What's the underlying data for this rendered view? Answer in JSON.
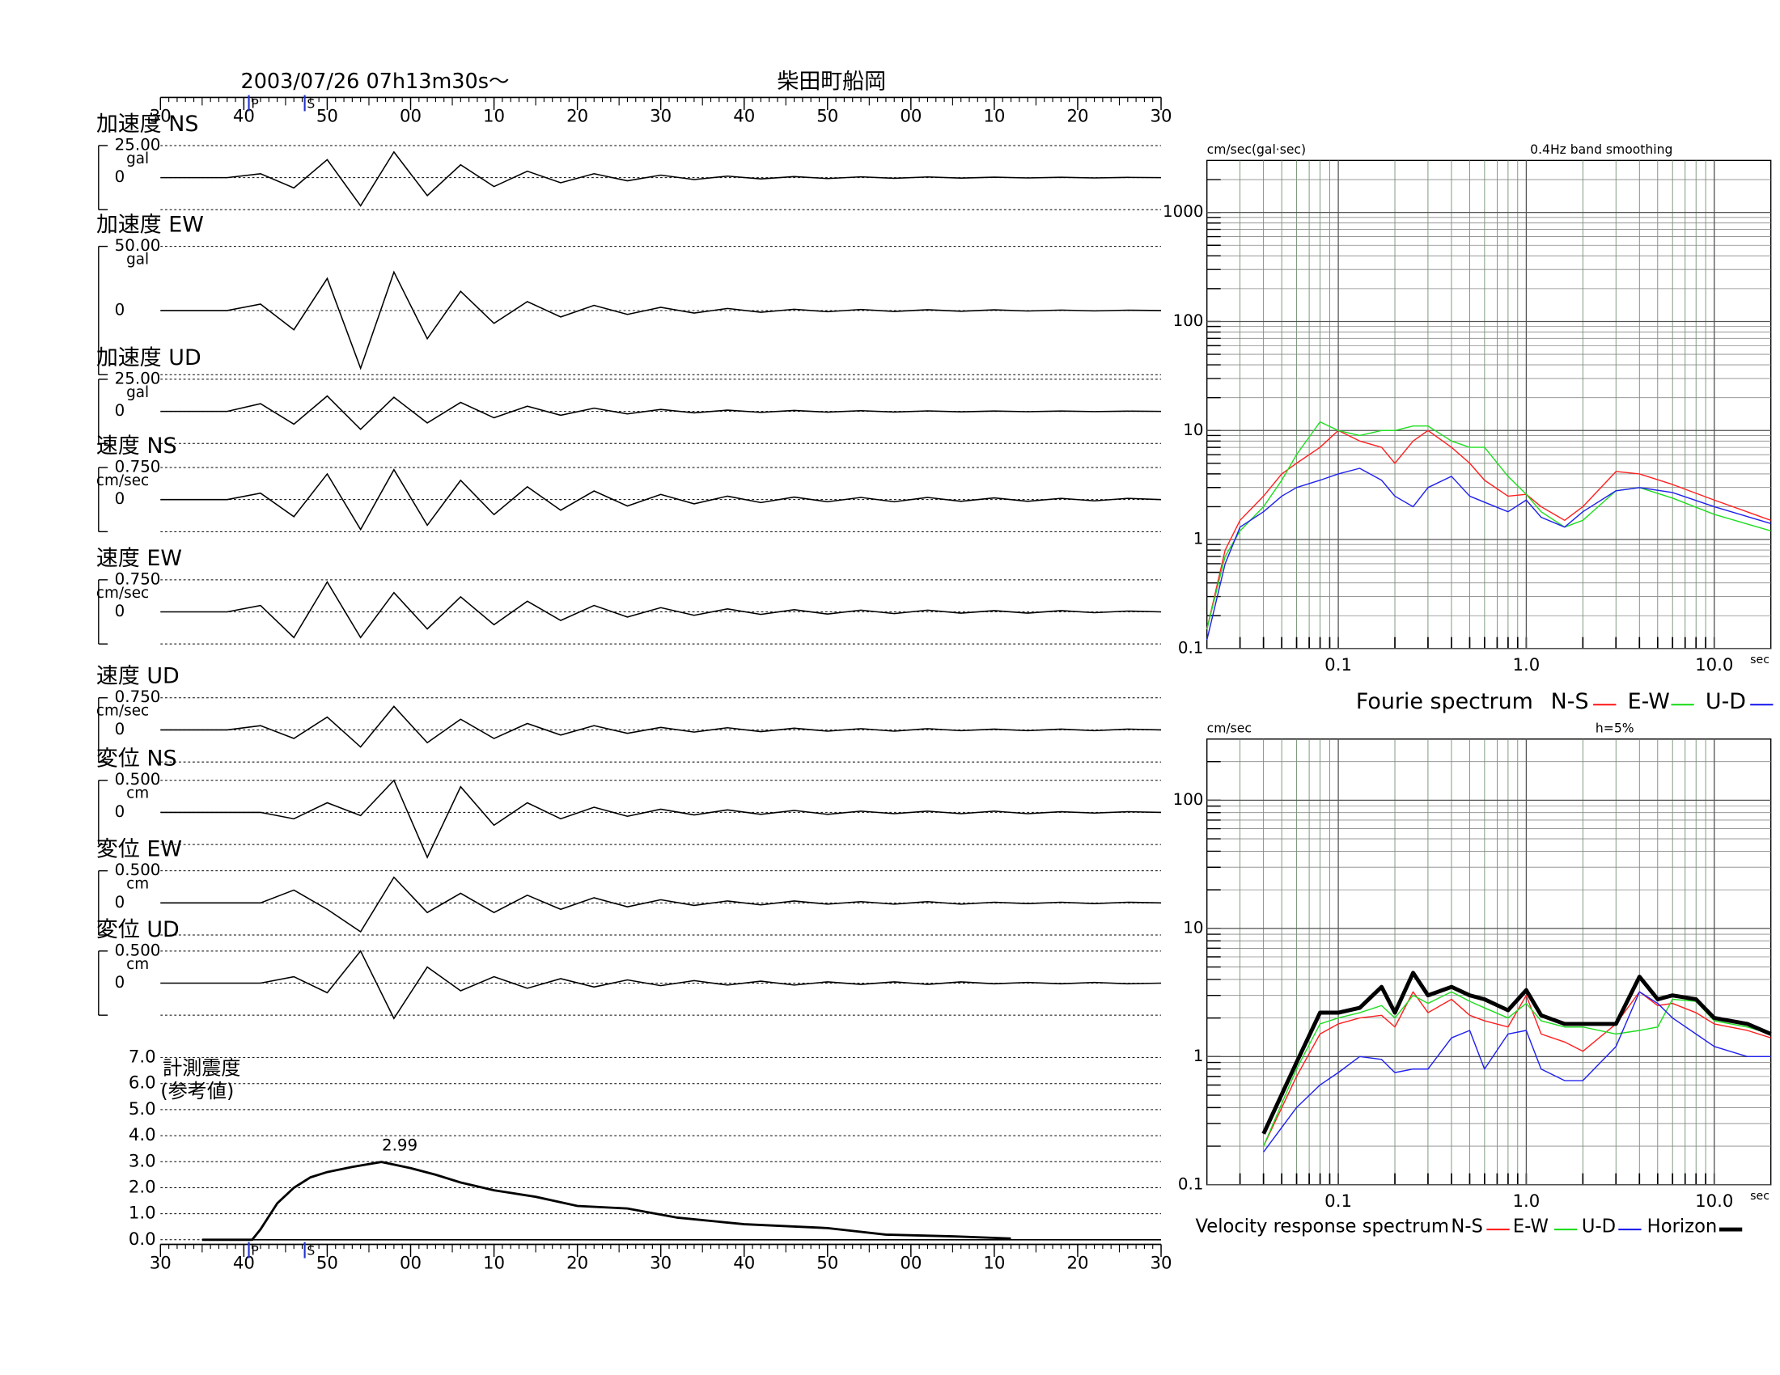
{
  "header": {
    "date": "2003/07/26  07h13m30s〜",
    "station": "柴田町船岡"
  },
  "chart_data": [
    {
      "type": "line",
      "xlim": [
        0,
        120
      ],
      "xticks": [
        {
          "value": 0,
          "label": "30"
        },
        {
          "value": 10,
          "label": "40"
        },
        {
          "value": 20,
          "label": "50"
        },
        {
          "value": 30,
          "label": "00"
        },
        {
          "value": 40,
          "label": "10"
        },
        {
          "value": 50,
          "label": "20"
        },
        {
          "value": 60,
          "label": "30"
        },
        {
          "value": 70,
          "label": "40"
        },
        {
          "value": 80,
          "label": "50"
        },
        {
          "value": 90,
          "label": "00"
        },
        {
          "value": 100,
          "label": "10"
        },
        {
          "value": 110,
          "label": "20"
        },
        {
          "value": 120,
          "label": "30"
        }
      ],
      "markers": [
        {
          "label": "P",
          "x": 10.6
        },
        {
          "label": "S",
          "x": 17.3
        }
      ],
      "x": [
        0,
        4,
        8,
        12,
        16,
        20,
        24,
        28,
        32,
        36,
        40,
        44,
        48,
        52,
        56,
        60,
        64,
        68,
        72,
        76,
        80,
        84,
        88,
        92,
        96,
        100,
        104,
        108,
        112,
        116,
        120
      ],
      "series": [
        {
          "name": "加速度 NS",
          "unit": "gal",
          "ylim": [
            -25,
            25
          ],
          "yticks": [
            {
              "value": 25,
              "label": "25.00"
            },
            0
          ],
          "color": "#000000",
          "values": [
            0,
            0,
            0,
            3,
            -8,
            14,
            -22,
            20,
            -14,
            10,
            -7,
            5,
            -4,
            3,
            -2.5,
            2,
            -1.5,
            1.2,
            -1,
            0.8,
            -0.7,
            0.6,
            -0.5,
            0.5,
            -0.4,
            0.4,
            -0.3,
            0.3,
            -0.3,
            0.2,
            0
          ]
        },
        {
          "name": "加速度 EW",
          "unit": "gal",
          "ylim": [
            -50,
            50
          ],
          "yticks": [
            {
              "value": 50,
              "label": "50.00"
            },
            0
          ],
          "color": "#000000",
          "values": [
            0,
            0,
            0,
            5,
            -15,
            25,
            -45,
            30,
            -22,
            15,
            -10,
            7,
            -5,
            4,
            -3,
            2.5,
            -2,
            1.6,
            -1.3,
            1,
            -0.9,
            0.8,
            -0.7,
            0.6,
            -0.5,
            0.5,
            -0.4,
            0.4,
            -0.3,
            0.3,
            0
          ]
        },
        {
          "name": "加速度 UD",
          "unit": "gal",
          "ylim": [
            -25,
            25
          ],
          "yticks": [
            {
              "value": 25,
              "label": "25.00"
            },
            0
          ],
          "color": "#000000",
          "values": [
            0,
            0,
            0,
            6,
            -10,
            12,
            -14,
            11,
            -9,
            7,
            -5,
            4,
            -3,
            2.5,
            -2,
            1.5,
            -1.2,
            1,
            -0.8,
            0.7,
            -0.6,
            0.5,
            -0.5,
            0.4,
            -0.4,
            0.3,
            -0.3,
            0.3,
            -0.2,
            0.2,
            0
          ]
        },
        {
          "name": "速度 NS",
          "unit": "cm/sec",
          "ylim": [
            -0.75,
            0.75
          ],
          "yticks": [
            {
              "value": 0.75,
              "label": "0.750"
            },
            0
          ],
          "color": "#000000",
          "values": [
            0,
            0,
            0,
            0.15,
            -0.4,
            0.6,
            -0.7,
            0.7,
            -0.6,
            0.45,
            -0.35,
            0.3,
            -0.25,
            0.2,
            -0.15,
            0.12,
            -0.1,
            0.08,
            -0.07,
            0.06,
            -0.05,
            0.05,
            -0.05,
            0.05,
            -0.04,
            0.04,
            -0.04,
            0.03,
            -0.03,
            0.03,
            0
          ]
        },
        {
          "name": "速度 EW",
          "unit": "cm/sec",
          "ylim": [
            -0.75,
            0.75
          ],
          "yticks": [
            {
              "value": 0.75,
              "label": "0.750"
            },
            0
          ],
          "color": "#000000",
          "values": [
            0,
            0,
            0,
            0.15,
            -0.6,
            0.7,
            -0.6,
            0.45,
            -0.4,
            0.35,
            -0.3,
            0.25,
            -0.2,
            0.15,
            -0.12,
            0.1,
            -0.08,
            0.07,
            -0.06,
            0.05,
            -0.05,
            0.04,
            -0.04,
            0.04,
            -0.03,
            0.03,
            -0.03,
            0.03,
            -0.02,
            0.02,
            0
          ]
        },
        {
          "name": "速度 UD",
          "unit": "cm/sec",
          "ylim": [
            -0.75,
            0.75
          ],
          "yticks": [
            {
              "value": 0.75,
              "label": "0.750"
            },
            0
          ],
          "color": "#000000",
          "values": [
            0,
            0,
            0,
            0.1,
            -0.2,
            0.3,
            -0.4,
            0.55,
            -0.3,
            0.25,
            -0.2,
            0.15,
            -0.12,
            0.1,
            -0.08,
            0.06,
            -0.05,
            0.05,
            -0.04,
            0.04,
            -0.03,
            0.03,
            -0.03,
            0.03,
            -0.02,
            0.02,
            -0.02,
            0.02,
            -0.02,
            0.02,
            0
          ]
        },
        {
          "name": "変位 NS",
          "unit": "cm",
          "ylim": [
            -0.5,
            0.5
          ],
          "yticks": [
            {
              "value": 0.5,
              "label": "0.500"
            },
            0
          ],
          "color": "#000000",
          "values": [
            0,
            0,
            0,
            0,
            -0.1,
            0.15,
            -0.05,
            0.5,
            -0.7,
            0.4,
            -0.2,
            0.15,
            -0.1,
            0.08,
            -0.06,
            0.05,
            -0.04,
            0.04,
            -0.03,
            0.03,
            -0.03,
            0.02,
            -0.02,
            0.02,
            -0.02,
            0.02,
            -0.02,
            0.01,
            -0.01,
            0.01,
            0
          ]
        },
        {
          "name": "変位 EW",
          "unit": "cm",
          "ylim": [
            -0.5,
            0.5
          ],
          "yticks": [
            {
              "value": 0.5,
              "label": "0.500"
            },
            0
          ],
          "color": "#000000",
          "values": [
            0,
            0,
            0,
            0,
            0.2,
            -0.1,
            -0.45,
            0.4,
            -0.15,
            0.15,
            -0.15,
            0.12,
            -0.1,
            0.08,
            -0.06,
            0.05,
            -0.04,
            0.03,
            -0.03,
            0.03,
            -0.02,
            0.02,
            -0.02,
            0.02,
            -0.02,
            0.01,
            -0.01,
            0.01,
            -0.01,
            0.01,
            0
          ]
        },
        {
          "name": "変位 UD",
          "unit": "cm",
          "ylim": [
            -0.5,
            0.5
          ],
          "yticks": [
            {
              "value": 0.5,
              "label": "0.500"
            },
            0
          ],
          "color": "#000000",
          "values": [
            0,
            0,
            0,
            0,
            0.1,
            -0.15,
            0.5,
            -0.55,
            0.25,
            -0.12,
            0.1,
            -0.08,
            0.07,
            -0.06,
            0.05,
            -0.04,
            0.04,
            -0.03,
            0.03,
            -0.03,
            0.02,
            -0.02,
            0.02,
            -0.02,
            0.02,
            -0.01,
            0.01,
            -0.01,
            0.01,
            -0.01,
            0
          ]
        }
      ]
    },
    {
      "type": "line",
      "title": "計測震度",
      "subtitle": "(参考値)",
      "color": "#000000",
      "xlim": [
        0,
        120
      ],
      "xticks": [
        {
          "value": 0,
          "label": "30"
        },
        {
          "value": 10,
          "label": "40"
        },
        {
          "value": 20,
          "label": "50"
        },
        {
          "value": 30,
          "label": "00"
        },
        {
          "value": 40,
          "label": "10"
        },
        {
          "value": 50,
          "label": "20"
        },
        {
          "value": 60,
          "label": "30"
        },
        {
          "value": 70,
          "label": "40"
        },
        {
          "value": 80,
          "label": "50"
        },
        {
          "value": 90,
          "label": "00"
        },
        {
          "value": 100,
          "label": "10"
        },
        {
          "value": 110,
          "label": "20"
        },
        {
          "value": 120,
          "label": "30"
        }
      ],
      "markers": [
        {
          "label": "P",
          "x": 10.6
        },
        {
          "label": "S",
          "x": 17.3
        }
      ],
      "ylim": [
        0,
        7
      ],
      "yticks": [
        {
          "value": 0,
          "label": "0.0"
        },
        {
          "value": 1,
          "label": "1.0"
        },
        {
          "value": 2,
          "label": "2.0"
        },
        {
          "value": 3,
          "label": "3.0"
        },
        {
          "value": 4,
          "label": "4.0"
        },
        {
          "value": 5,
          "label": "5.0"
        },
        {
          "value": 6,
          "label": "6.0"
        },
        {
          "value": 7,
          "label": "7.0"
        }
      ],
      "x": [
        5,
        11,
        12,
        14,
        16,
        18,
        20,
        23,
        26.5,
        30,
        33,
        36,
        40,
        45,
        50,
        56,
        62,
        70,
        80,
        87,
        95,
        102
      ],
      "values": [
        0,
        0,
        0.4,
        1.4,
        2.0,
        2.4,
        2.6,
        2.8,
        2.99,
        2.75,
        2.5,
        2.2,
        1.9,
        1.65,
        1.3,
        1.2,
        0.85,
        0.6,
        0.45,
        0.2,
        0.13,
        0.05
      ],
      "annotation": {
        "x": 26.5,
        "value": 2.99
      }
    },
    {
      "type": "line",
      "title": "Fourie spectrum",
      "ylabel": "cm/sec(gal·sec)",
      "note": "0.4Hz band smoothing",
      "xlabel": "sec",
      "log_x": true,
      "log_y": true,
      "grid": true,
      "xlim": [
        0.02,
        20
      ],
      "xticks": [
        0.1,
        {
          "value": 1,
          "label": "1.0"
        },
        {
          "value": 10,
          "label": "10.0"
        }
      ],
      "ylim": [
        0.1,
        3000
      ],
      "yticks": [
        0.1,
        1,
        10,
        100,
        1000
      ],
      "x": [
        0.02,
        0.025,
        0.03,
        0.04,
        0.05,
        0.06,
        0.08,
        0.1,
        0.13,
        0.17,
        0.2,
        0.25,
        0.3,
        0.4,
        0.5,
        0.6,
        0.8,
        1,
        1.2,
        1.6,
        2,
        3,
        4,
        6,
        10,
        20
      ],
      "series": [
        {
          "name": "N-S",
          "color": "#ff2020",
          "width": 1,
          "values": [
            0.15,
            0.8,
            1.5,
            2.5,
            4,
            5,
            7,
            10,
            8,
            7,
            5,
            8,
            10,
            7,
            5,
            3.5,
            2.5,
            2.6,
            2.0,
            1.5,
            2.0,
            4.2,
            4.0,
            3.2,
            2.3,
            1.5
          ]
        },
        {
          "name": "E-W",
          "color": "#20dd20",
          "width": 1,
          "values": [
            0.15,
            0.7,
            1.2,
            2,
            3.5,
            6,
            12,
            10,
            9,
            10,
            10,
            11,
            11,
            8,
            7,
            7,
            3.8,
            2.6,
            1.8,
            1.3,
            1.5,
            2.8,
            3.0,
            2.4,
            1.7,
            1.2
          ]
        },
        {
          "name": "U-D",
          "color": "#2020ee",
          "width": 1,
          "values": [
            0.12,
            0.6,
            1.3,
            1.8,
            2.5,
            3,
            3.5,
            4,
            4.5,
            3.5,
            2.5,
            2.0,
            3.0,
            3.8,
            2.5,
            2.2,
            1.8,
            2.3,
            1.6,
            1.3,
            1.8,
            2.8,
            3.0,
            2.7,
            2.0,
            1.4
          ]
        }
      ]
    },
    {
      "type": "line",
      "title": "Velocity response spectrum",
      "ylabel": "cm/sec",
      "note": "h=5%",
      "xlabel": "sec",
      "log_x": true,
      "log_y": true,
      "grid": true,
      "xlim": [
        0.02,
        20
      ],
      "xticks": [
        0.1,
        {
          "value": 1,
          "label": "1.0"
        },
        {
          "value": 10,
          "label": "10.0"
        }
      ],
      "ylim": [
        0.1,
        300
      ],
      "yticks": [
        0.1,
        1,
        10,
        100
      ],
      "x": [
        0.04,
        0.06,
        0.08,
        0.1,
        0.13,
        0.17,
        0.2,
        0.25,
        0.3,
        0.4,
        0.5,
        0.6,
        0.8,
        1,
        1.2,
        1.6,
        2,
        3,
        4,
        5,
        6,
        8,
        10,
        15,
        20
      ],
      "series": [
        {
          "name": "N-S",
          "color": "#ff2020",
          "width": 1,
          "values": [
            0.2,
            0.7,
            1.5,
            1.8,
            2.0,
            2.1,
            1.7,
            3.2,
            2.2,
            2.8,
            2.1,
            1.9,
            1.7,
            3.0,
            1.5,
            1.3,
            1.1,
            1.8,
            3.2,
            2.5,
            2.6,
            2.2,
            1.8,
            1.6,
            1.4
          ]
        },
        {
          "name": "E-W",
          "color": "#20dd20",
          "width": 1,
          "values": [
            0.2,
            0.8,
            1.8,
            2.0,
            2.2,
            2.5,
            2.0,
            3.0,
            2.6,
            3.2,
            2.7,
            2.4,
            2.0,
            2.6,
            1.9,
            1.7,
            1.7,
            1.5,
            1.6,
            1.7,
            2.8,
            2.7,
            1.9,
            1.7,
            1.5
          ]
        },
        {
          "name": "U-D",
          "color": "#2020ee",
          "width": 1,
          "values": [
            0.18,
            0.4,
            0.6,
            0.75,
            1.0,
            0.95,
            0.75,
            0.8,
            0.8,
            1.4,
            1.6,
            0.8,
            1.5,
            1.6,
            0.8,
            0.65,
            0.65,
            1.2,
            3.2,
            2.6,
            2.0,
            1.5,
            1.2,
            1.0,
            1.0
          ]
        },
        {
          "name": "Horizon",
          "color": "#000000",
          "width": 3.5,
          "values": [
            0.25,
            0.9,
            2.2,
            2.2,
            2.4,
            3.5,
            2.2,
            4.5,
            3.0,
            3.5,
            3.0,
            2.8,
            2.3,
            3.3,
            2.1,
            1.8,
            1.8,
            1.8,
            4.2,
            2.8,
            3.0,
            2.8,
            2.0,
            1.8,
            1.5
          ]
        }
      ]
    }
  ]
}
